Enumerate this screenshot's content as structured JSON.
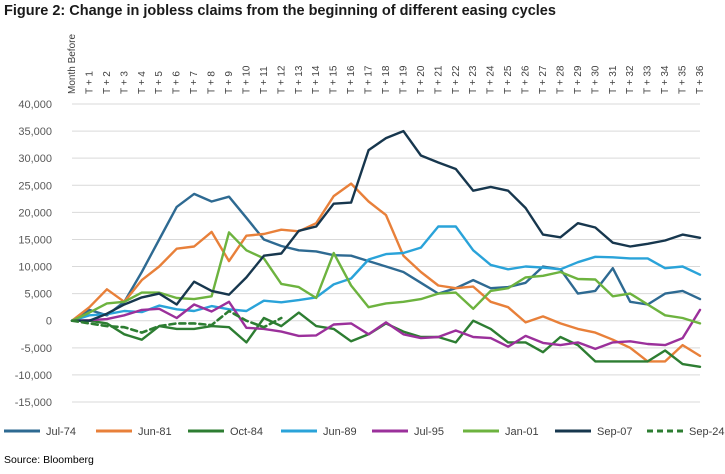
{
  "title": "Figure 2: Change in jobless claims from the beginning of different easing cycles",
  "source": "Source: Bloomberg",
  "chart_data": {
    "type": "line",
    "categories": [
      "Month Before",
      "T + 1",
      "T + 2",
      "T + 3",
      "T + 4",
      "T + 5",
      "T + 6",
      "T + 7",
      "T + 8",
      "T + 9",
      "T + 10",
      "T + 11",
      "T + 12",
      "T + 13",
      "T + 14",
      "T + 15",
      "T + 16",
      "T + 17",
      "T + 18",
      "T + 19",
      "T + 20",
      "T + 21",
      "T + 22",
      "T + 23",
      "T + 24",
      "T + 25",
      "T + 26",
      "T + 27",
      "T + 28",
      "T + 29",
      "T + 30",
      "T + 31",
      "T + 32",
      "T + 33",
      "T + 34",
      "T + 35",
      "T + 36"
    ],
    "ylim": [
      -15000,
      40000
    ],
    "yticks": [
      40000,
      35000,
      30000,
      25000,
      20000,
      15000,
      10000,
      5000,
      0,
      -5000,
      -10000,
      -15000
    ],
    "ytick_labels": [
      "40,000",
      "35,000",
      "30,000",
      "25,000",
      "20,000",
      "15,000",
      "10,000",
      "5,000",
      "0",
      "-5,000",
      "-10,000",
      "-15,000"
    ],
    "legend_position": "bottom",
    "series": [
      {
        "name": "Jul-74",
        "color": "#2e6a92",
        "dash": false,
        "values": [
          0,
          2000,
          1000,
          3500,
          9000,
          15000,
          21000,
          23400,
          22000,
          22900,
          19000,
          15000,
          13800,
          13000,
          12800,
          12100,
          12000,
          11000,
          10000,
          9000,
          7000,
          5000,
          6000,
          7500,
          6000,
          6200,
          7000,
          10000,
          9500,
          5000,
          5500,
          9700,
          3500,
          3000,
          5000,
          5500,
          4000
        ]
      },
      {
        "name": "Jun-81",
        "color": "#e8803a",
        "dash": false,
        "values": [
          0,
          2500,
          5800,
          3500,
          7500,
          10000,
          13300,
          13700,
          16400,
          11000,
          15700,
          16000,
          16800,
          16500,
          18000,
          23000,
          25300,
          22000,
          19500,
          12000,
          9000,
          6500,
          6000,
          6300,
          3500,
          2500,
          -300,
          800,
          -500,
          -1500,
          -2200,
          -3500,
          -5000,
          -7500,
          -7500,
          -4500,
          -6500
        ]
      },
      {
        "name": "Oct-84",
        "color": "#2d7d32",
        "dash": false,
        "values": [
          0,
          0,
          -500,
          -2500,
          -3500,
          -1000,
          -1500,
          -1500,
          -1000,
          -1200,
          -4000,
          500,
          -1000,
          1500,
          -1000,
          -1500,
          -3800,
          -2500,
          -500,
          -2000,
          -3000,
          -3000,
          -4000,
          0,
          -1500,
          -4000,
          -4000,
          -5800,
          -3000,
          -4500,
          -7500,
          -7500,
          -7500,
          -7500,
          -5500,
          -8000,
          -8500
        ]
      },
      {
        "name": "Jun-89",
        "color": "#2aa3d9",
        "dash": false,
        "values": [
          0,
          1000,
          1200,
          1800,
          1600,
          2800,
          2100,
          1800,
          2700,
          2100,
          1800,
          3700,
          3400,
          3800,
          4300,
          6700,
          7800,
          11300,
          12300,
          12500,
          13500,
          17400,
          17400,
          13000,
          10300,
          9500,
          10000,
          9800,
          9500,
          10800,
          11800,
          11700,
          11500,
          11500,
          9700,
          10000,
          8500
        ]
      },
      {
        "name": "Jul-95",
        "color": "#9b309b",
        "dash": false,
        "values": [
          0,
          100,
          300,
          1000,
          2000,
          2200,
          500,
          3000,
          1700,
          3500,
          -1300,
          -1500,
          -2000,
          -2800,
          -2700,
          -700,
          -500,
          -2500,
          -300,
          -2500,
          -3200,
          -3000,
          -1800,
          -3000,
          -3200,
          -4800,
          -2800,
          -4100,
          -4500,
          -4000,
          -5200,
          -4000,
          -3800,
          -4300,
          -4500,
          -3200,
          2000
        ]
      },
      {
        "name": "Jan-01",
        "color": "#6db33f",
        "dash": false,
        "values": [
          0,
          1500,
          3200,
          3500,
          5200,
          5200,
          4200,
          4000,
          4500,
          16300,
          13000,
          11500,
          6800,
          6200,
          4200,
          12500,
          6500,
          2500,
          3200,
          3500,
          4000,
          5000,
          5200,
          2200,
          5500,
          6000,
          8000,
          8300,
          9000,
          7700,
          7600,
          4500,
          5000,
          3000,
          1000,
          500,
          -500
        ]
      },
      {
        "name": "Sep-07",
        "color": "#17374e",
        "dash": false,
        "values": [
          0,
          0,
          1300,
          3000,
          4300,
          5000,
          3000,
          7200,
          5500,
          4800,
          8000,
          12000,
          12400,
          16600,
          17400,
          21600,
          21800,
          31500,
          33700,
          35000,
          30500,
          29200,
          28000,
          24000,
          24700,
          24000,
          20800,
          15900,
          15400,
          18000,
          17200,
          14400,
          13700,
          14200,
          14800,
          15900,
          15300
        ]
      },
      {
        "name": "Sep-24",
        "color": "#2d7d32",
        "dash": true,
        "values": [
          0,
          -500,
          -1000,
          -1200,
          -2200,
          -1000,
          -500,
          -500,
          -800,
          1800,
          0,
          -1200,
          500,
          null,
          null,
          null,
          null,
          null,
          null,
          null,
          null,
          null,
          null,
          null,
          null,
          null,
          null,
          null,
          null,
          null,
          null,
          null,
          null,
          null,
          null,
          null,
          null
        ]
      }
    ]
  }
}
